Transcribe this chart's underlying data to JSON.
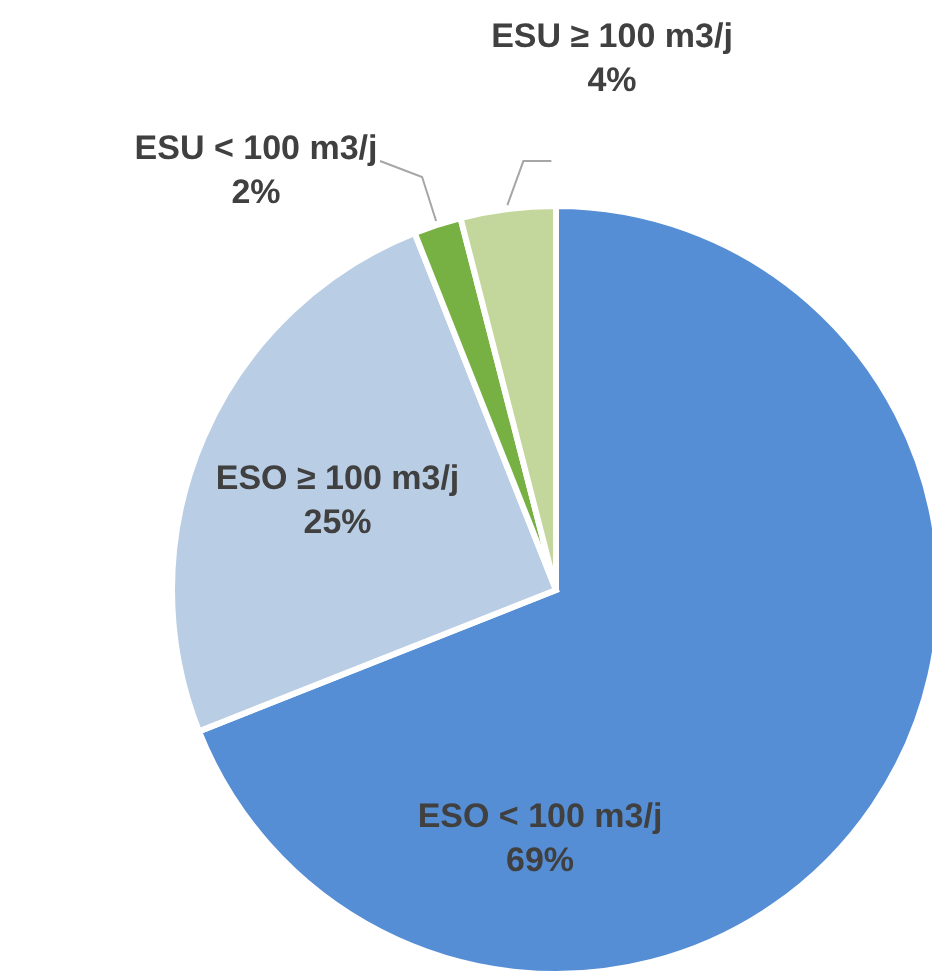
{
  "chart_data": {
    "type": "pie",
    "categories": [
      "ESO < 100 m3/j",
      "ESO ≥ 100 m3/j",
      "ESU < 100 m3/j",
      "ESU ≥ 100 m3/j"
    ],
    "values": [
      69,
      25,
      2,
      4
    ],
    "colors": [
      "#558ed5",
      "#b9cde5",
      "#77b143",
      "#c3d69b"
    ],
    "value_labels": [
      "69%",
      "25%",
      "2%",
      "4%"
    ]
  }
}
